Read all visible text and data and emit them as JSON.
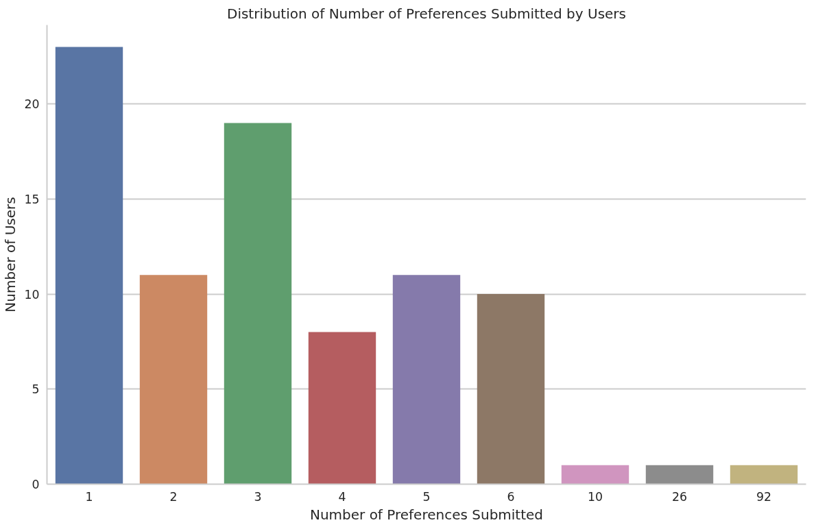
{
  "chart_data": {
    "type": "bar",
    "title": "Distribution of Number of Preferences Submitted by Users",
    "xlabel": "Number of Preferences Submitted",
    "ylabel": "Number of Users",
    "categories": [
      "1",
      "2",
      "3",
      "4",
      "5",
      "6",
      "10",
      "26",
      "92"
    ],
    "values": [
      23,
      11,
      19,
      8,
      11,
      10,
      1,
      1,
      1
    ],
    "colors": [
      "#5975a4",
      "#cc8963",
      "#5f9e6e",
      "#b55d60",
      "#857aab",
      "#8d7866",
      "#d095bf",
      "#8c8c8c",
      "#c1b37f"
    ],
    "ylim": [
      0,
      24.15
    ],
    "yticks": [
      0,
      5,
      10,
      15,
      20
    ],
    "grid": "y"
  }
}
